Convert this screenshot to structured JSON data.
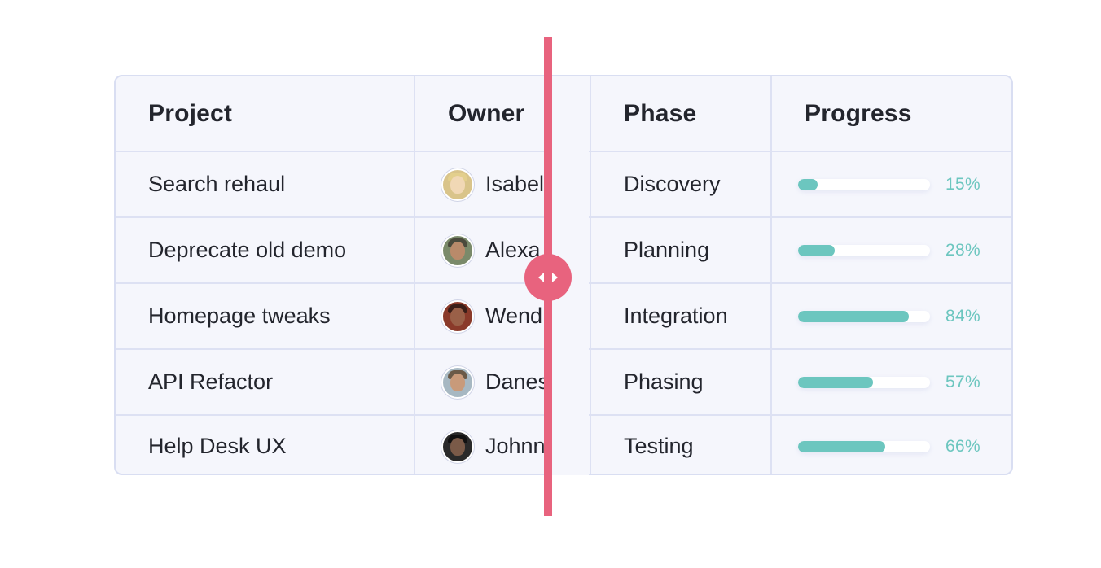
{
  "table": {
    "headers": {
      "project": "Project",
      "owner": "Owner",
      "phase": "Phase",
      "progress": "Progress"
    },
    "rows": [
      {
        "project": "Search rehaul",
        "owner": "Isabel",
        "phase": "Discovery",
        "progress": 0.15,
        "progress_label": "15%",
        "avatar": "avatar-blonde"
      },
      {
        "project": "Deprecate old demo",
        "owner": "Alexa",
        "phase": "Planning",
        "progress": 0.28,
        "progress_label": "28%",
        "avatar": "avatar-cap"
      },
      {
        "project": "Homepage tweaks",
        "owner": "Wend",
        "phase": "Integration",
        "progress": 0.84,
        "progress_label": "84%",
        "avatar": "avatar-dark-hair"
      },
      {
        "project": "API Refactor",
        "owner": "Danes",
        "phase": "Phasing",
        "progress": 0.57,
        "progress_label": "57%",
        "avatar": "avatar-outdoor"
      },
      {
        "project": "Help Desk UX",
        "owner": "Johnn",
        "phase": "Testing",
        "progress": 0.66,
        "progress_label": "66%",
        "avatar": "avatar-dark"
      }
    ]
  },
  "comparison_slider": {
    "handle_icon": "left-right-arrows-icon"
  },
  "colors": {
    "accent": "#6cc6bf",
    "divider": "#e8637e",
    "table_bg": "#f5f6fc",
    "border": "#d9def2",
    "text": "#23252d"
  }
}
